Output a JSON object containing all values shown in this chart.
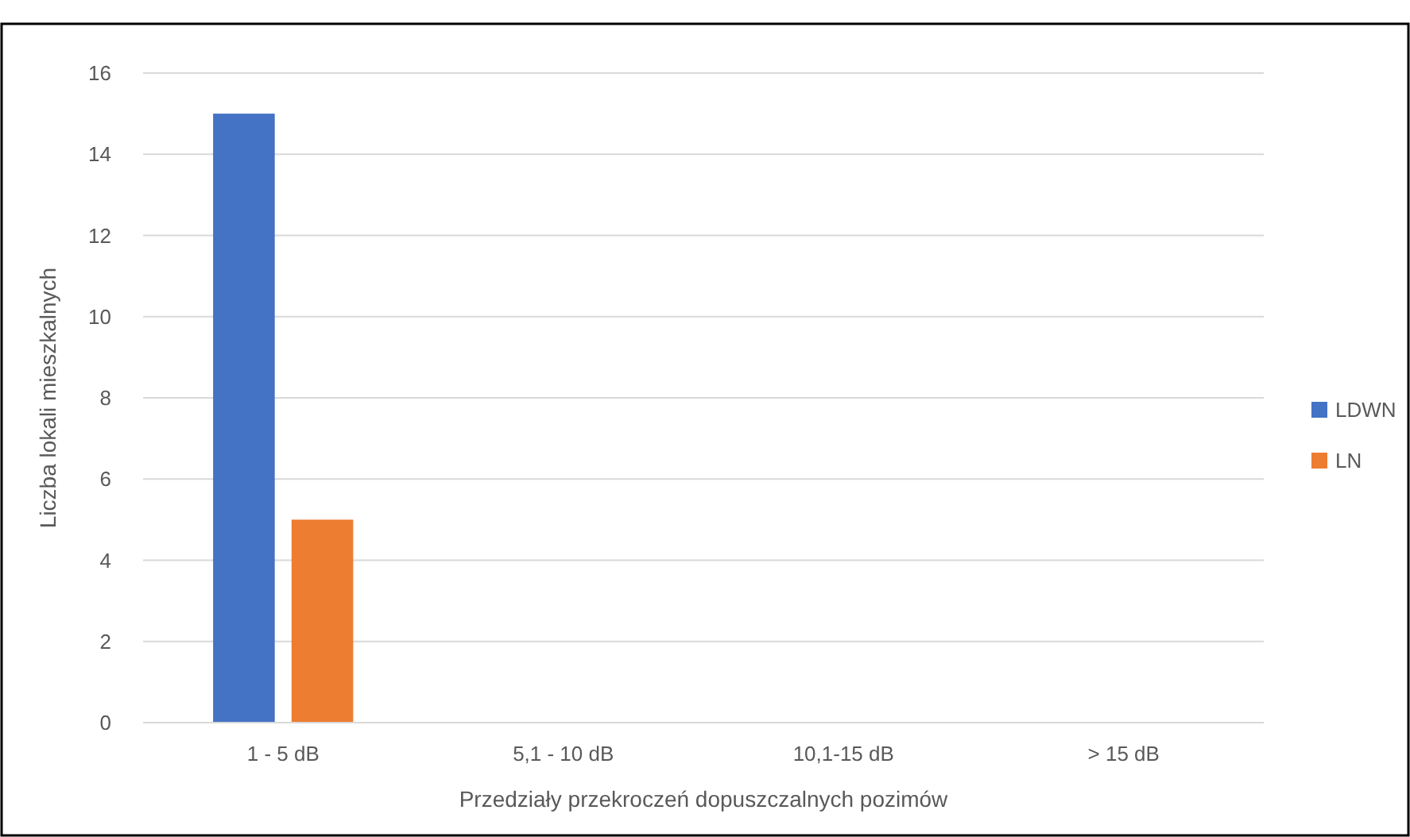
{
  "chart_data": {
    "type": "bar",
    "xlabel": "Przedziały przekroczeń dopuszczalnych pozimów",
    "ylabel": "Liczba lokali mieszkalnych",
    "categories": [
      "1 - 5 dB",
      "5,1 - 10 dB",
      "10,1-15 dB",
      "> 15 dB"
    ],
    "series": [
      {
        "name": "LDWN",
        "color": "#4472c4",
        "values": [
          15,
          0,
          0,
          0
        ]
      },
      {
        "name": "LN",
        "color": "#ed7d31",
        "values": [
          5,
          0,
          0,
          0
        ]
      }
    ],
    "ylim": [
      0,
      16
    ],
    "yticks": [
      0,
      2,
      4,
      6,
      8,
      10,
      12,
      14,
      16
    ],
    "grid": "y",
    "legend": "right"
  }
}
